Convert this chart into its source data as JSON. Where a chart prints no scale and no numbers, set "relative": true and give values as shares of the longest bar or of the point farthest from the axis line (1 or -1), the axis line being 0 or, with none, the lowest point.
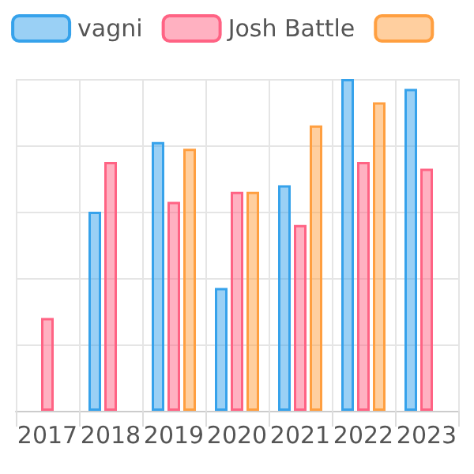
{
  "chart_data": {
    "type": "bar",
    "relative": true,
    "categories": [
      "2017",
      "2018",
      "2019",
      "2020",
      "2021",
      "2022",
      "2023"
    ],
    "series": [
      {
        "name": "vagni",
        "color": "#36a2eb",
        "values": [
          null,
          0.6,
          0.81,
          0.37,
          0.68,
          1,
          0.97
        ]
      },
      {
        "name": "Josh Battle",
        "color": "#ff6384",
        "values": [
          0.28,
          0.75,
          0.63,
          0.66,
          0.56,
          0.75,
          0.73
        ]
      },
      {
        "color": "#ff9f40",
        "values": [
          null,
          null,
          0.79,
          0.66,
          0.86,
          0.93,
          null
        ]
      }
    ],
    "grid": true,
    "legend": "top"
  }
}
